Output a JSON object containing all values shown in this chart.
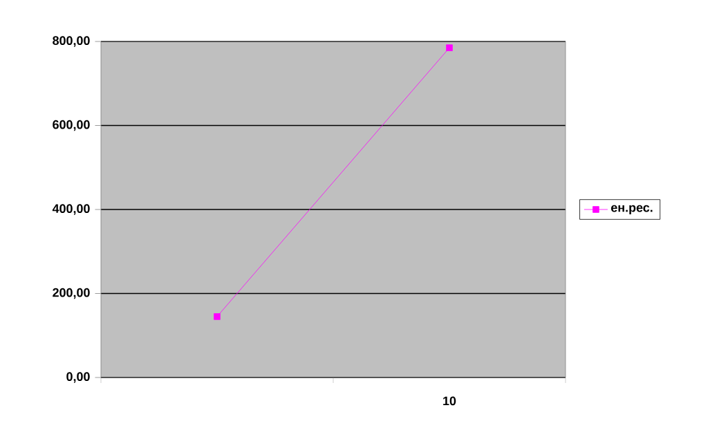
{
  "chart_data": {
    "type": "line",
    "categories": [
      null,
      "10"
    ],
    "series": [
      {
        "name": "ен.рес.",
        "color": "#ff00ff",
        "values": [
          145,
          785
        ]
      }
    ],
    "ylim": [
      0,
      800
    ],
    "yticks": [
      {
        "value": 0,
        "label": "0,00"
      },
      {
        "value": 200,
        "label": "200,00"
      },
      {
        "value": 400,
        "label": "400,00"
      },
      {
        "value": 600,
        "label": "600,00"
      },
      {
        "value": 800,
        "label": "800,00"
      }
    ],
    "grid": "y",
    "legend": "right",
    "marker": "square",
    "line_style": "solid"
  }
}
